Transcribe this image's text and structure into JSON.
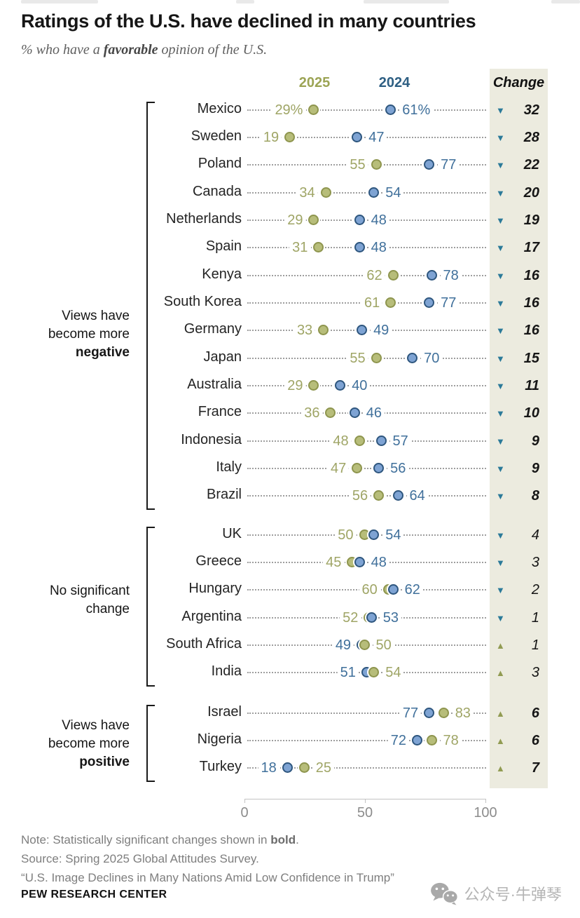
{
  "page": {
    "title": "Ratings of the U.S. have declined in many countries",
    "subtitle": {
      "prefix": "% who have a ",
      "bold": "favorable",
      "suffix": " opinion of the U.S."
    }
  },
  "chart_data": {
    "type": "scatter",
    "subtype": "dumbbell-dot-plot",
    "title": "Ratings of the U.S. have declined in many countries",
    "headers": {
      "y2025": "2025",
      "y2024": "2024",
      "change": "Change"
    },
    "axis": {
      "min": 0,
      "max": 100,
      "ticks": [
        0,
        50,
        100
      ],
      "tick_labels": [
        "0",
        "50",
        "100"
      ],
      "grid": false
    },
    "colors": {
      "c2025_fill": "#b7bd7a",
      "c2025_stroke": "#8e954e",
      "c2025_text": "#9fa566",
      "c2024_fill": "#7ea3d3",
      "c2024_stroke": "#2e567e",
      "c2024_text": "#40709b",
      "down_triangle": "#2b7a99",
      "up_triangle": "#919b52",
      "change_bg": "#ecebdf"
    },
    "groups": [
      {
        "name": "negative",
        "side_label": {
          "lines": [
            "Views have",
            "become more"
          ],
          "bold_line": "negative"
        },
        "rows": [
          {
            "country": "Mexico",
            "v2025": 29,
            "v2024": 61,
            "label2025": "29%",
            "label2024": "61%",
            "change": 32,
            "direction": "down",
            "significant": true
          },
          {
            "country": "Sweden",
            "v2025": 19,
            "v2024": 47,
            "label2025": "19",
            "label2024": "47",
            "change": 28,
            "direction": "down",
            "significant": true
          },
          {
            "country": "Poland",
            "v2025": 55,
            "v2024": 77,
            "label2025": "55",
            "label2024": "77",
            "change": 22,
            "direction": "down",
            "significant": true
          },
          {
            "country": "Canada",
            "v2025": 34,
            "v2024": 54,
            "label2025": "34",
            "label2024": "54",
            "change": 20,
            "direction": "down",
            "significant": true
          },
          {
            "country": "Netherlands",
            "v2025": 29,
            "v2024": 48,
            "label2025": "29",
            "label2024": "48",
            "change": 19,
            "direction": "down",
            "significant": true
          },
          {
            "country": "Spain",
            "v2025": 31,
            "v2024": 48,
            "label2025": "31",
            "label2024": "48",
            "change": 17,
            "direction": "down",
            "significant": true
          },
          {
            "country": "Kenya",
            "v2025": 62,
            "v2024": 78,
            "label2025": "62",
            "label2024": "78",
            "change": 16,
            "direction": "down",
            "significant": true
          },
          {
            "country": "South Korea",
            "v2025": 61,
            "v2024": 77,
            "label2025": "61",
            "label2024": "77",
            "change": 16,
            "direction": "down",
            "significant": true
          },
          {
            "country": "Germany",
            "v2025": 33,
            "v2024": 49,
            "label2025": "33",
            "label2024": "49",
            "change": 16,
            "direction": "down",
            "significant": true
          },
          {
            "country": "Japan",
            "v2025": 55,
            "v2024": 70,
            "label2025": "55",
            "label2024": "70",
            "change": 15,
            "direction": "down",
            "significant": true
          },
          {
            "country": "Australia",
            "v2025": 29,
            "v2024": 40,
            "label2025": "29",
            "label2024": "40",
            "change": 11,
            "direction": "down",
            "significant": true
          },
          {
            "country": "France",
            "v2025": 36,
            "v2024": 46,
            "label2025": "36",
            "label2024": "46",
            "change": 10,
            "direction": "down",
            "significant": true
          },
          {
            "country": "Indonesia",
            "v2025": 48,
            "v2024": 57,
            "label2025": "48",
            "label2024": "57",
            "change": 9,
            "direction": "down",
            "significant": true
          },
          {
            "country": "Italy",
            "v2025": 47,
            "v2024": 56,
            "label2025": "47",
            "label2024": "56",
            "change": 9,
            "direction": "down",
            "significant": true
          },
          {
            "country": "Brazil",
            "v2025": 56,
            "v2024": 64,
            "label2025": "56",
            "label2024": "64",
            "change": 8,
            "direction": "down",
            "significant": true
          }
        ]
      },
      {
        "name": "no-significant-change",
        "side_label": {
          "lines": [
            "No significant",
            "change"
          ],
          "bold_line": ""
        },
        "rows": [
          {
            "country": "UK",
            "v2025": 50,
            "v2024": 54,
            "label2025": "50",
            "label2024": "54",
            "change": 4,
            "direction": "down",
            "significant": false
          },
          {
            "country": "Greece",
            "v2025": 45,
            "v2024": 48,
            "label2025": "45",
            "label2024": "48",
            "change": 3,
            "direction": "down",
            "significant": false
          },
          {
            "country": "Hungary",
            "v2025": 60,
            "v2024": 62,
            "label2025": "60",
            "label2024": "62",
            "change": 2,
            "direction": "down",
            "significant": false
          },
          {
            "country": "Argentina",
            "v2025": 52,
            "v2024": 53,
            "label2025": "52",
            "label2024": "53",
            "change": 1,
            "direction": "down",
            "significant": false
          },
          {
            "country": "South Africa",
            "v2025": 50,
            "v2024": 49,
            "label2025": "50",
            "label2024": "49",
            "change": 1,
            "direction": "up",
            "significant": false
          },
          {
            "country": "India",
            "v2025": 54,
            "v2024": 51,
            "label2025": "54",
            "label2024": "51",
            "change": 3,
            "direction": "up",
            "significant": false
          }
        ]
      },
      {
        "name": "positive",
        "side_label": {
          "lines": [
            "Views have",
            "become more"
          ],
          "bold_line": "positive"
        },
        "rows": [
          {
            "country": "Israel",
            "v2025": 83,
            "v2024": 77,
            "label2025": "83",
            "label2024": "77",
            "change": 6,
            "direction": "up",
            "significant": true
          },
          {
            "country": "Nigeria",
            "v2025": 78,
            "v2024": 72,
            "label2025": "78",
            "label2024": "72",
            "change": 6,
            "direction": "up",
            "significant": true
          },
          {
            "country": "Turkey",
            "v2025": 25,
            "v2024": 18,
            "label2025": "25",
            "label2024": "18",
            "change": 7,
            "direction": "up",
            "significant": true
          }
        ]
      }
    ]
  },
  "notes": {
    "note_prefix": "Note: Statistically significant changes shown in ",
    "note_bold": "bold",
    "note_suffix": ".",
    "source": "Source: Spring 2025 Global Attitudes Survey.",
    "quote": "“U.S. Image Declines in Many Nations Amid Low Confidence in Trump”"
  },
  "footer": {
    "brand": "PEW RESEARCH CENTER",
    "watermark": "公众号·牛弹琴"
  }
}
